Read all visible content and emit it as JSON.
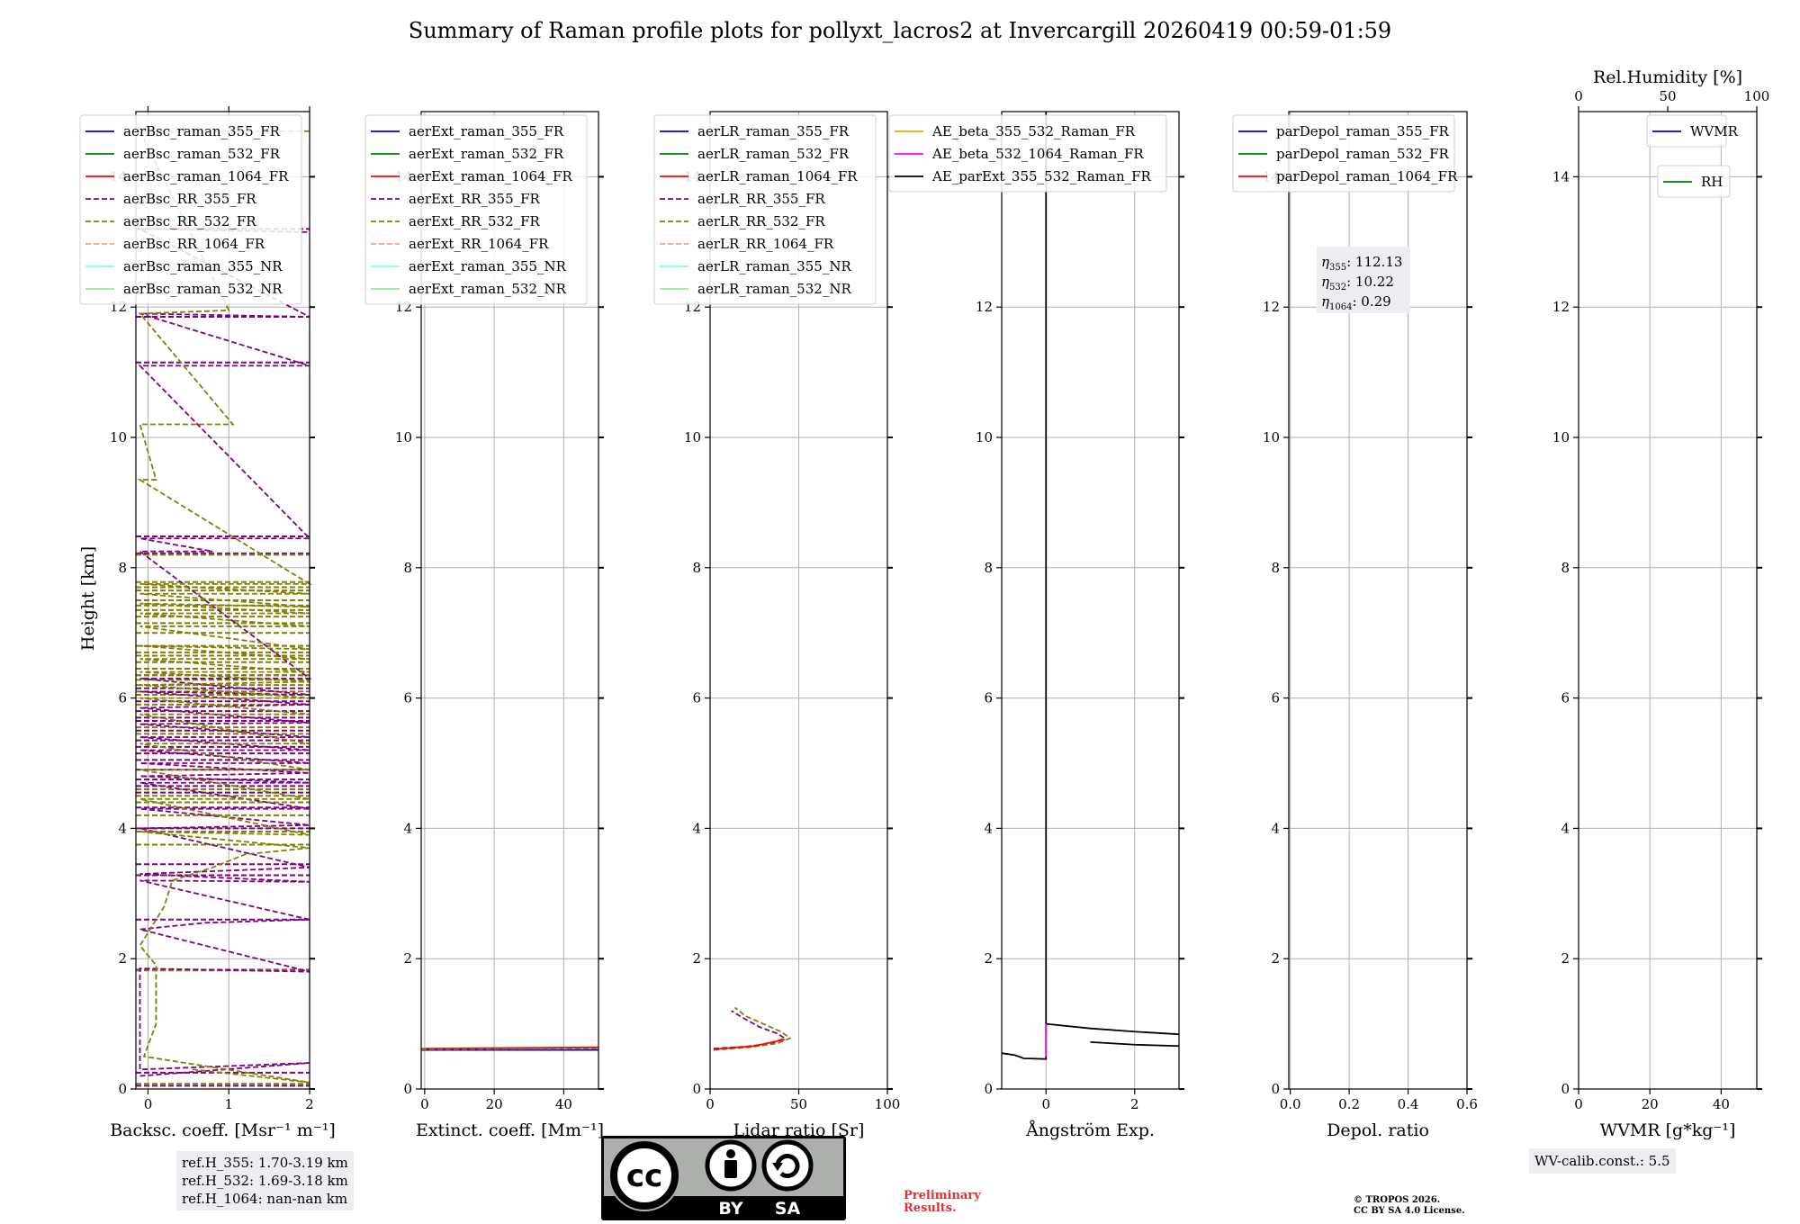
{
  "title": "Summary of Raman profile plots for pollyxt_lacros2 at Invercargill 20260419 00:59-01:59",
  "ylabel": "Height [km]",
  "colors": {
    "blue": "#0000ff",
    "green": "#008000",
    "red": "#ff0000",
    "purple": "#800080",
    "olive": "#808000",
    "salmon": "#ffa07a",
    "cyan": "#7fffd4",
    "lightgreen": "#90ee90",
    "orange": "#ffa500",
    "magenta": "#ff00ff",
    "black": "#000000"
  },
  "chart_data": [
    {
      "type": "line",
      "id": "bsc",
      "xlabel": "Backsc. coeff. [Msr⁻¹ m⁻¹]",
      "xlim": [
        -0.15,
        2
      ],
      "ylim": [
        0,
        15
      ],
      "xticks": [
        0,
        1,
        2
      ],
      "yticks": [
        0,
        2,
        4,
        6,
        8,
        10,
        12,
        14
      ],
      "legend": [
        {
          "label": "aerBsc_raman_355_FR",
          "color": "blue",
          "dash": false
        },
        {
          "label": "aerBsc_raman_532_FR",
          "color": "green",
          "dash": false
        },
        {
          "label": "aerBsc_raman_1064_FR",
          "color": "red",
          "dash": false
        },
        {
          "label": "aerBsc_RR_355_FR",
          "color": "purple",
          "dash": true
        },
        {
          "label": "aerBsc_RR_532_FR",
          "color": "olive",
          "dash": true
        },
        {
          "label": "aerBsc_RR_1064_FR",
          "color": "salmon",
          "dash": true
        },
        {
          "label": "aerBsc_raman_355_NR",
          "color": "cyan",
          "dash": false
        },
        {
          "label": "aerBsc_raman_532_NR",
          "color": "lightgreen",
          "dash": false
        }
      ],
      "series": [
        {
          "name": "aerBsc_RR_355_FR spikes",
          "color": "purple",
          "dash": true,
          "points": [
            [
              -0.1,
              0.2
            ],
            [
              2,
              0.4
            ],
            [
              -0.1,
              0.3
            ],
            [
              -0.1,
              1.85
            ],
            [
              2,
              1.8
            ],
            [
              -0.1,
              2.45
            ],
            [
              0.7,
              2.55
            ],
            [
              2,
              2.6
            ],
            [
              -0.1,
              3.2
            ],
            [
              2,
              3.18
            ],
            [
              -0.1,
              3.3
            ],
            [
              2,
              3.4
            ],
            [
              -0.1,
              4.0
            ],
            [
              2,
              4.05
            ],
            [
              -0.1,
              4.3
            ],
            [
              2,
              4.3
            ],
            [
              -0.1,
              4.7
            ],
            [
              2,
              4.7
            ],
            [
              -0.1,
              4.8
            ],
            [
              2,
              4.85
            ],
            [
              -0.1,
              5.0
            ],
            [
              2,
              5.0
            ],
            [
              -0.1,
              5.2
            ],
            [
              2,
              5.2
            ],
            [
              -0.1,
              5.4
            ],
            [
              2,
              5.4
            ],
            [
              -0.1,
              5.6
            ],
            [
              2,
              5.62
            ],
            [
              -0.1,
              5.85
            ],
            [
              2,
              5.9
            ],
            [
              -0.1,
              6.1
            ],
            [
              2,
              6.05
            ],
            [
              -0.1,
              6.3
            ],
            [
              2,
              6.3
            ],
            [
              -0.1,
              8.25
            ],
            [
              0.8,
              8.25
            ],
            [
              -0.1,
              8.45
            ],
            [
              2,
              8.45
            ],
            [
              -0.1,
              11.1
            ],
            [
              2,
              11.1
            ],
            [
              -0.1,
              11.9
            ],
            [
              2,
              11.85
            ],
            [
              -0.1,
              13.2
            ],
            [
              2,
              13.15
            ]
          ]
        },
        {
          "name": "aerBsc_RR_532_FR spikes",
          "color": "olive",
          "dash": true,
          "points": [
            [
              0.55,
              0.3
            ],
            [
              2,
              0.1
            ],
            [
              -0.05,
              0.5
            ],
            [
              0.1,
              1.0
            ],
            [
              0.1,
              1.9
            ],
            [
              -0.1,
              2.2
            ],
            [
              0.2,
              2.8
            ],
            [
              0.3,
              3.2
            ],
            [
              0.8,
              3.4
            ],
            [
              1.2,
              3.6
            ],
            [
              2,
              3.7
            ],
            [
              -0.1,
              3.95
            ],
            [
              2,
              3.9
            ],
            [
              -0.1,
              4.45
            ],
            [
              2,
              4.45
            ],
            [
              -0.1,
              4.9
            ],
            [
              2,
              4.9
            ],
            [
              -0.1,
              5.3
            ],
            [
              2,
              5.3
            ],
            [
              -0.1,
              5.75
            ],
            [
              2,
              5.75
            ],
            [
              -0.1,
              6.0
            ],
            [
              2,
              6.0
            ],
            [
              -0.1,
              6.2
            ],
            [
              2,
              6.25
            ],
            [
              -0.1,
              6.4
            ],
            [
              2,
              6.4
            ],
            [
              -0.1,
              6.6
            ],
            [
              2,
              6.6
            ],
            [
              -0.1,
              6.8
            ],
            [
              2,
              6.75
            ],
            [
              -0.1,
              7.1
            ],
            [
              2,
              7.1
            ],
            [
              -0.1,
              7.3
            ],
            [
              2,
              7.3
            ],
            [
              -0.1,
              7.45
            ],
            [
              2,
              7.4
            ],
            [
              -0.1,
              7.6
            ],
            [
              2,
              7.6
            ],
            [
              -0.1,
              7.75
            ],
            [
              2,
              7.75
            ],
            [
              -0.1,
              9.35
            ],
            [
              0.1,
              9.35
            ],
            [
              -0.1,
              10.2
            ],
            [
              1.05,
              10.2
            ],
            [
              -0.1,
              11.9
            ],
            [
              1,
              11.95
            ],
            [
              -0.1,
              14.7
            ],
            [
              2,
              14.7
            ]
          ]
        }
      ],
      "hlines": [
        {
          "color": "purple",
          "y": [
            0.05,
            0.25,
            1.83,
            2.6,
            3.28,
            3.45,
            4.0,
            4.32,
            4.55,
            4.65,
            4.75,
            4.9,
            5.05,
            5.15,
            5.25,
            5.35,
            5.5,
            5.65,
            5.7,
            5.8,
            5.95,
            6.15,
            6.35,
            8.22,
            8.48,
            11.15,
            11.85,
            13.2
          ]
        },
        {
          "color": "olive",
          "y": [
            0.08,
            1.82,
            3.75,
            3.95,
            4.2,
            4.4,
            4.5,
            4.6,
            5.45,
            5.55,
            5.9,
            6.05,
            6.1,
            6.2,
            6.28,
            6.35,
            6.45,
            6.55,
            6.65,
            6.7,
            6.8,
            7.0,
            7.15,
            7.25,
            7.35,
            7.42,
            7.5,
            7.65,
            7.7,
            7.78,
            8.2
          ]
        }
      ]
    },
    {
      "type": "line",
      "id": "ext",
      "xlabel": "Extinct. coeff. [Mm⁻¹]",
      "xlim": [
        -1,
        50
      ],
      "ylim": [
        0,
        15
      ],
      "xticks": [
        0,
        20,
        40
      ],
      "yticks": [
        0,
        2,
        4,
        6,
        8,
        10,
        12,
        14
      ],
      "legend": [
        {
          "label": "aerExt_raman_355_FR",
          "color": "blue",
          "dash": false
        },
        {
          "label": "aerExt_raman_532_FR",
          "color": "green",
          "dash": false
        },
        {
          "label": "aerExt_raman_1064_FR",
          "color": "red",
          "dash": false
        },
        {
          "label": "aerExt_RR_355_FR",
          "color": "purple",
          "dash": true
        },
        {
          "label": "aerExt_RR_532_FR",
          "color": "olive",
          "dash": true
        },
        {
          "label": "aerExt_RR_1064_FR",
          "color": "salmon",
          "dash": true
        },
        {
          "label": "aerExt_raman_355_NR",
          "color": "cyan",
          "dash": false
        },
        {
          "label": "aerExt_raman_532_NR",
          "color": "lightgreen",
          "dash": false
        }
      ],
      "series": [
        {
          "name": "aerExt_raman_355_FR",
          "color": "blue",
          "dash": false,
          "points": [
            [
              -1,
              0.6
            ],
            [
              50,
              0.6
            ]
          ]
        },
        {
          "name": "aerExt_raman_1064_FR",
          "color": "red",
          "dash": false,
          "points": [
            [
              -1,
              0.62
            ],
            [
              50,
              0.64
            ]
          ]
        },
        {
          "name": "aerExt_RR_532_FR",
          "color": "olive",
          "dash": true,
          "points": [
            [
              -1,
              0.61
            ],
            [
              50,
              0.62
            ]
          ]
        }
      ]
    },
    {
      "type": "line",
      "id": "lr",
      "xlabel": "Lidar ratio [Sr]",
      "xlim": [
        0,
        100
      ],
      "ylim": [
        0,
        15
      ],
      "xticks": [
        0,
        50,
        100
      ],
      "yticks": [
        0,
        2,
        4,
        6,
        8,
        10,
        12,
        14
      ],
      "legend": [
        {
          "label": "aerLR_raman_355_FR",
          "color": "blue",
          "dash": false
        },
        {
          "label": "aerLR_raman_532_FR",
          "color": "green",
          "dash": false
        },
        {
          "label": "aerLR_raman_1064_FR",
          "color": "red",
          "dash": false
        },
        {
          "label": "aerLR_RR_355_FR",
          "color": "purple",
          "dash": true
        },
        {
          "label": "aerLR_RR_532_FR",
          "color": "olive",
          "dash": true
        },
        {
          "label": "aerLR_RR_1064_FR",
          "color": "salmon",
          "dash": true
        },
        {
          "label": "aerLR_raman_355_NR",
          "color": "cyan",
          "dash": false
        },
        {
          "label": "aerLR_raman_532_NR",
          "color": "lightgreen",
          "dash": false
        }
      ],
      "series": [
        {
          "name": "aerLR_RR_355_FR",
          "color": "purple",
          "dash": true,
          "points": [
            [
              2,
              0.62
            ],
            [
              20,
              0.65
            ],
            [
              35,
              0.7
            ],
            [
              42,
              0.78
            ],
            [
              38,
              0.85
            ],
            [
              28,
              0.95
            ],
            [
              18,
              1.1
            ],
            [
              12,
              1.2
            ]
          ]
        },
        {
          "name": "aerLR_RR_532_FR",
          "color": "olive",
          "dash": true,
          "points": [
            [
              2,
              0.6
            ],
            [
              22,
              0.64
            ],
            [
              38,
              0.7
            ],
            [
              45,
              0.78
            ],
            [
              40,
              0.88
            ],
            [
              30,
              1.0
            ],
            [
              20,
              1.12
            ],
            [
              14,
              1.25
            ]
          ]
        },
        {
          "name": "aerLR_raman_1064_FR",
          "color": "red",
          "dash": false,
          "points": [
            [
              2,
              0.61
            ],
            [
              25,
              0.66
            ],
            [
              42,
              0.76
            ]
          ]
        }
      ]
    },
    {
      "type": "line",
      "id": "ae",
      "xlabel": "Ångström Exp.",
      "xlim": [
        -1,
        3
      ],
      "ylim": [
        0,
        15
      ],
      "xticks": [
        0,
        2
      ],
      "yticks": [
        0,
        2,
        4,
        6,
        8,
        10,
        12,
        14
      ],
      "legend": [
        {
          "label": "AE_beta_355_532_Raman_FR",
          "color": "orange",
          "dash": false
        },
        {
          "label": "AE_beta_532_1064_Raman_FR",
          "color": "magenta",
          "dash": false
        },
        {
          "label": "AE_parExt_355_532_Raman_FR",
          "color": "black",
          "dash": false
        }
      ],
      "series": [
        {
          "name": "AE_parExt_355_532_Raman_FR",
          "color": "black",
          "dash": false,
          "points": [
            [
              -1,
              0.55
            ],
            [
              -0.7,
              0.52
            ],
            [
              -0.5,
              0.47
            ],
            [
              0,
              0.46
            ],
            [
              0,
              15
            ]
          ]
        },
        {
          "name": "AE_parExt_355_532_Raman_FR upper",
          "color": "black",
          "dash": false,
          "points": [
            [
              0,
              1.0
            ],
            [
              1,
              0.93
            ],
            [
              2,
              0.88
            ],
            [
              3,
              0.84
            ]
          ]
        },
        {
          "name": "AE_parExt_355_532_Raman_FR lower",
          "color": "black",
          "dash": false,
          "points": [
            [
              1,
              0.72
            ],
            [
              2,
              0.68
            ],
            [
              3,
              0.66
            ]
          ]
        },
        {
          "name": "AE_beta_532_1064_Raman_FR",
          "color": "magenta",
          "dash": false,
          "points": [
            [
              0,
              0.5
            ],
            [
              0,
              1.0
            ]
          ]
        }
      ]
    },
    {
      "type": "line",
      "id": "depol",
      "xlabel": "Depol. ratio",
      "xlim": [
        -0.005,
        0.6
      ],
      "ylim": [
        0,
        15
      ],
      "xticks": [
        0.0,
        0.2,
        0.4,
        0.6
      ],
      "xtick_labels": [
        "0.0",
        "0.2",
        "0.4",
        "0.6"
      ],
      "yticks": [
        0,
        2,
        4,
        6,
        8,
        10,
        12,
        14
      ],
      "legend": [
        {
          "label": "parDepol_raman_355_FR",
          "color": "blue",
          "dash": false
        },
        {
          "label": "parDepol_raman_532_FR",
          "color": "green",
          "dash": false
        },
        {
          "label": "parDepol_raman_1064_FR",
          "color": "red",
          "dash": false
        }
      ],
      "series": [],
      "eta": [
        {
          "sub": "355",
          "value": ": 112.13"
        },
        {
          "sub": "532",
          "value": ": 10.22"
        },
        {
          "sub": "1064",
          "value": ": 0.29"
        }
      ]
    },
    {
      "type": "line",
      "id": "wv",
      "xlabel": "WVMR [g*kg⁻¹]",
      "top_xlabel": "Rel.Humidity [%]",
      "xlim": [
        0,
        50
      ],
      "top_xlim": [
        0,
        100
      ],
      "ylim": [
        0,
        15
      ],
      "xticks": [
        0,
        20,
        40
      ],
      "top_xticks": [
        0,
        50,
        100
      ],
      "yticks": [
        0,
        2,
        4,
        6,
        8,
        10,
        12,
        14
      ],
      "legend": [
        {
          "label": "WVMR",
          "color": "blue",
          "dash": false
        }
      ],
      "legend2": [
        {
          "label": "RH",
          "color": "green",
          "dash": false
        }
      ],
      "series": []
    }
  ],
  "refs": [
    "ref.H_355: 1.70-3.19 km",
    "ref.H_532: 1.69-3.18 km",
    "ref.H_1064: nan-nan km"
  ],
  "wv_calib": "WV-calib.const.: 5.5",
  "license": {
    "cc": "cc",
    "by": "BY",
    "sa": "SA"
  },
  "prelim": [
    "Preliminary",
    "Results."
  ],
  "copyright": [
    "© TROPOS 2026.",
    "CC BY SA 4.0 License."
  ]
}
